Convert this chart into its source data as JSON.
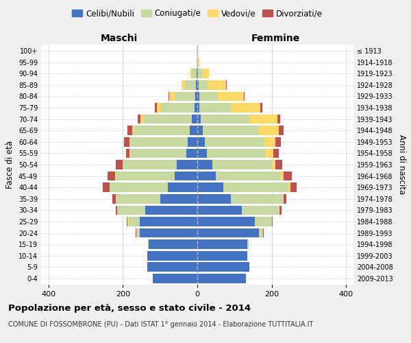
{
  "age_groups": [
    "0-4",
    "5-9",
    "10-14",
    "15-19",
    "20-24",
    "25-29",
    "30-34",
    "35-39",
    "40-44",
    "45-49",
    "50-54",
    "55-59",
    "60-64",
    "65-69",
    "70-74",
    "75-79",
    "80-84",
    "85-89",
    "90-94",
    "95-99",
    "100+"
  ],
  "birth_years": [
    "2009-2013",
    "2004-2008",
    "1999-2003",
    "1994-1998",
    "1989-1993",
    "1984-1988",
    "1979-1983",
    "1974-1978",
    "1969-1973",
    "1964-1968",
    "1959-1963",
    "1954-1958",
    "1949-1953",
    "1944-1948",
    "1939-1943",
    "1934-1938",
    "1929-1933",
    "1924-1928",
    "1919-1923",
    "1914-1918",
    "≤ 1913"
  ],
  "males": {
    "celibi": [
      120,
      135,
      135,
      130,
      155,
      155,
      140,
      100,
      80,
      60,
      55,
      30,
      25,
      20,
      15,
      8,
      6,
      4,
      2,
      0,
      0
    ],
    "coniugati": [
      0,
      0,
      0,
      2,
      8,
      30,
      75,
      120,
      155,
      160,
      145,
      150,
      155,
      150,
      130,
      90,
      55,
      30,
      12,
      2,
      1
    ],
    "vedovi": [
      0,
      0,
      0,
      0,
      1,
      2,
      0,
      0,
      1,
      1,
      1,
      2,
      3,
      5,
      8,
      10,
      15,
      8,
      5,
      0,
      0
    ],
    "divorziati": [
      0,
      0,
      0,
      0,
      1,
      2,
      5,
      8,
      18,
      20,
      18,
      10,
      15,
      12,
      8,
      6,
      2,
      0,
      0,
      0,
      0
    ]
  },
  "females": {
    "nubili": [
      130,
      140,
      135,
      135,
      165,
      155,
      120,
      90,
      70,
      50,
      40,
      25,
      20,
      15,
      10,
      5,
      5,
      3,
      2,
      0,
      0
    ],
    "coniugate": [
      0,
      0,
      0,
      3,
      12,
      45,
      100,
      140,
      175,
      175,
      160,
      160,
      160,
      150,
      130,
      85,
      50,
      25,
      10,
      2,
      1
    ],
    "vedove": [
      0,
      0,
      0,
      0,
      0,
      0,
      1,
      2,
      5,
      8,
      10,
      20,
      30,
      55,
      75,
      80,
      70,
      50,
      20,
      3,
      1
    ],
    "divorziate": [
      0,
      0,
      0,
      0,
      1,
      2,
      5,
      8,
      18,
      22,
      18,
      14,
      15,
      12,
      8,
      5,
      2,
      1,
      0,
      0,
      0
    ]
  },
  "colors": {
    "celibi": "#4472C4",
    "coniugati": "#c5d9a0",
    "vedovi": "#FFD966",
    "divorziati": "#C0504D"
  },
  "xlim": 420,
  "ylabel_left": "Fasce di età",
  "ylabel_right": "Anni di nascita",
  "title_main": "Popolazione per età, sesso e stato civile - 2014",
  "title_sub": "COMUNE DI FOSSOMBRONE (PU) - Dati ISTAT 1° gennaio 2014 - Elaborazione TUTTITALIA.IT",
  "legend_labels": [
    "Celibi/Nubili",
    "Coniugati/e",
    "Vedovi/e",
    "Divorziati/e"
  ],
  "maschi_label": "Maschi",
  "femmine_label": "Femmine",
  "bg_color": "#f0f0f0",
  "plot_bg": "#ffffff"
}
